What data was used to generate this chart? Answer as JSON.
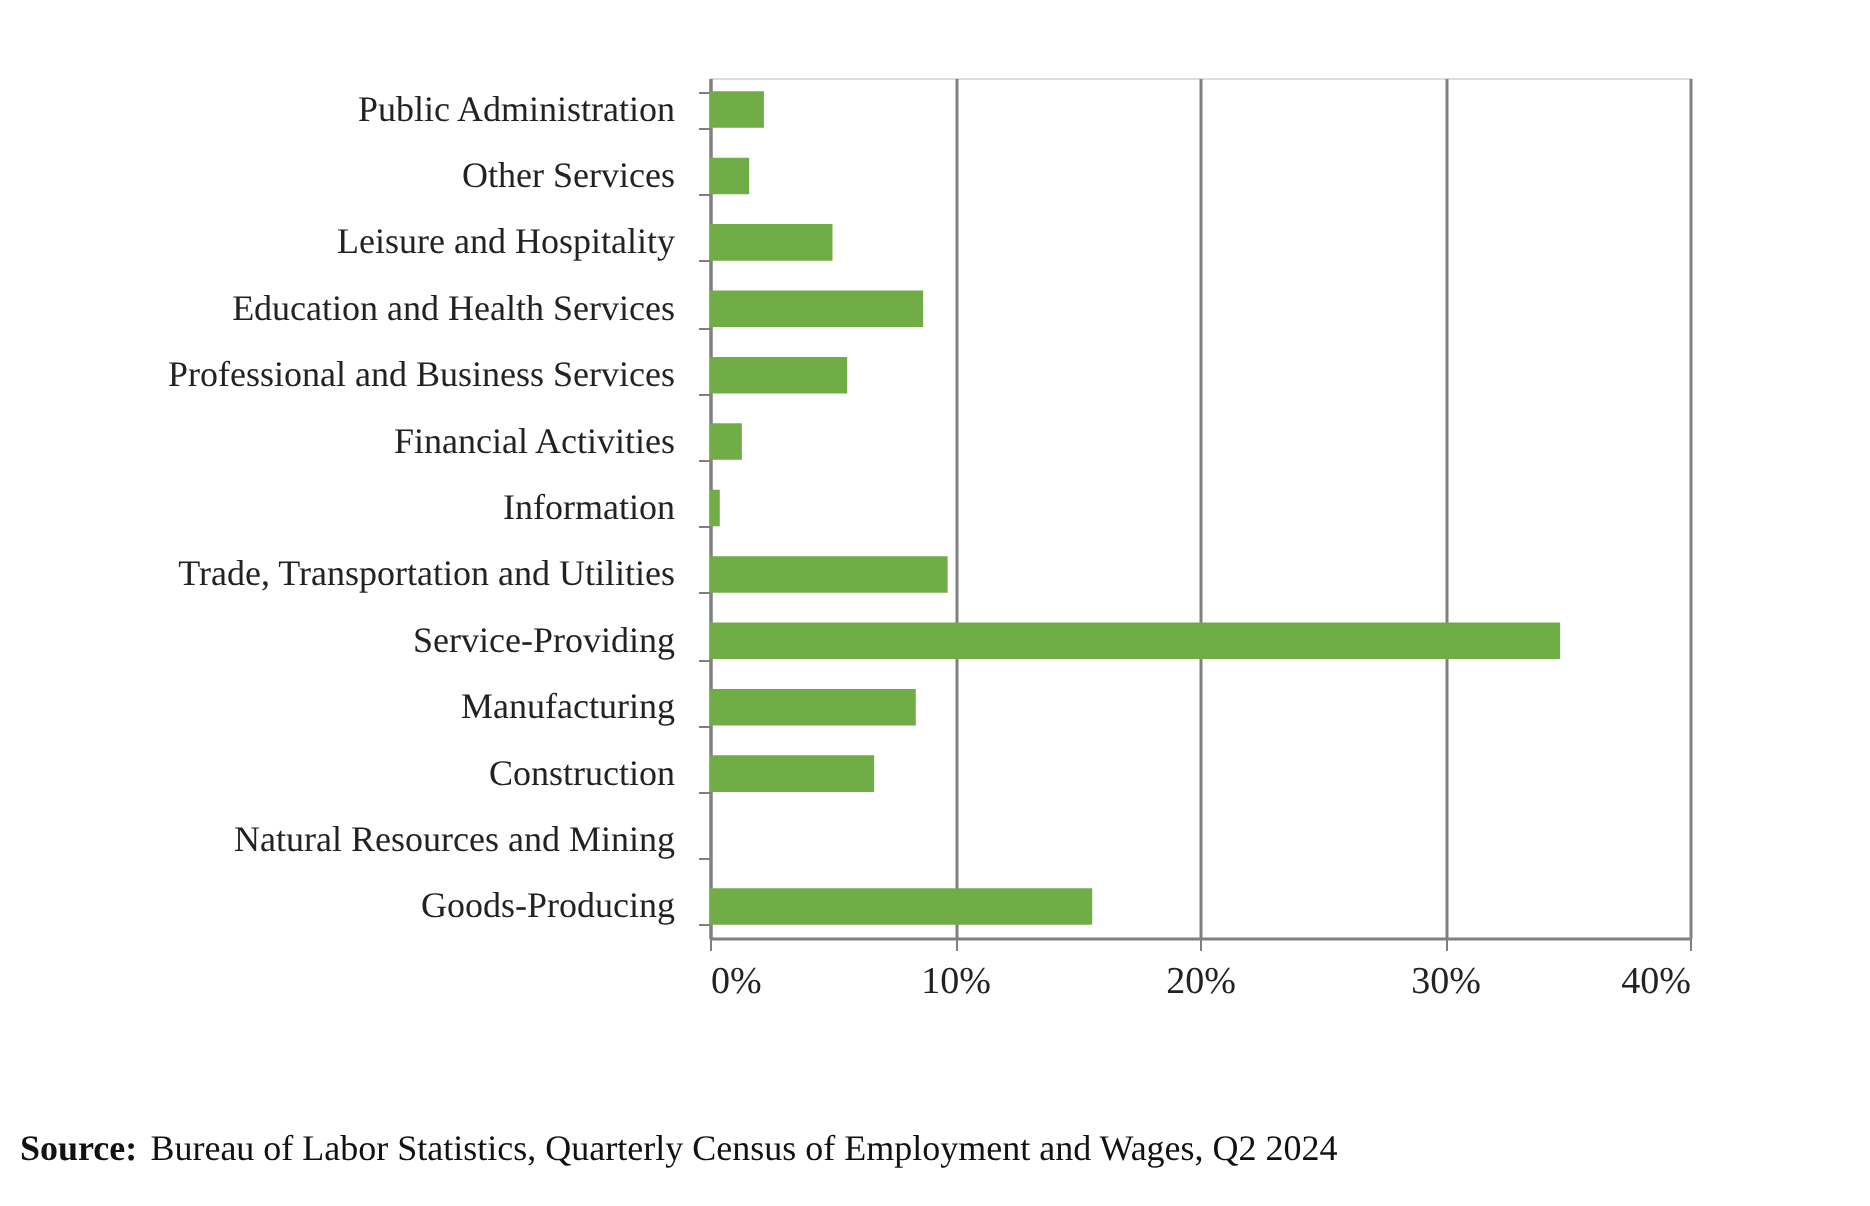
{
  "chart_data": {
    "type": "bar",
    "orientation": "horizontal",
    "categories": [
      "Public Administration",
      "Other Services",
      "Leisure and Hospitality",
      "Education and Health Services",
      "Professional and Business Services",
      "Financial Activities",
      "Information",
      "Trade, Transportation and Utilities",
      "Service-Providing",
      "Manufacturing",
      "Construction",
      "Natural Resources and Mining",
      "Goods-Producing"
    ],
    "values": [
      2.2,
      1.6,
      5.0,
      8.7,
      5.6,
      1.3,
      0.4,
      9.7,
      34.7,
      8.4,
      6.7,
      null,
      15.6
    ],
    "color": "#70ad47",
    "xlim": [
      0,
      40
    ],
    "xticks": [
      {
        "value": 0,
        "label": "0%"
      },
      {
        "value": 10,
        "label": "10%"
      },
      {
        "value": 20,
        "label": "20%"
      },
      {
        "value": 30,
        "label": "30%"
      },
      {
        "value": 40,
        "label": "40%"
      }
    ],
    "grid": "x",
    "annotations": [
      "**Source:** Bureau of Labor Statistics, Quarterly Census of Employment and Wages, Q2 2024"
    ]
  }
}
